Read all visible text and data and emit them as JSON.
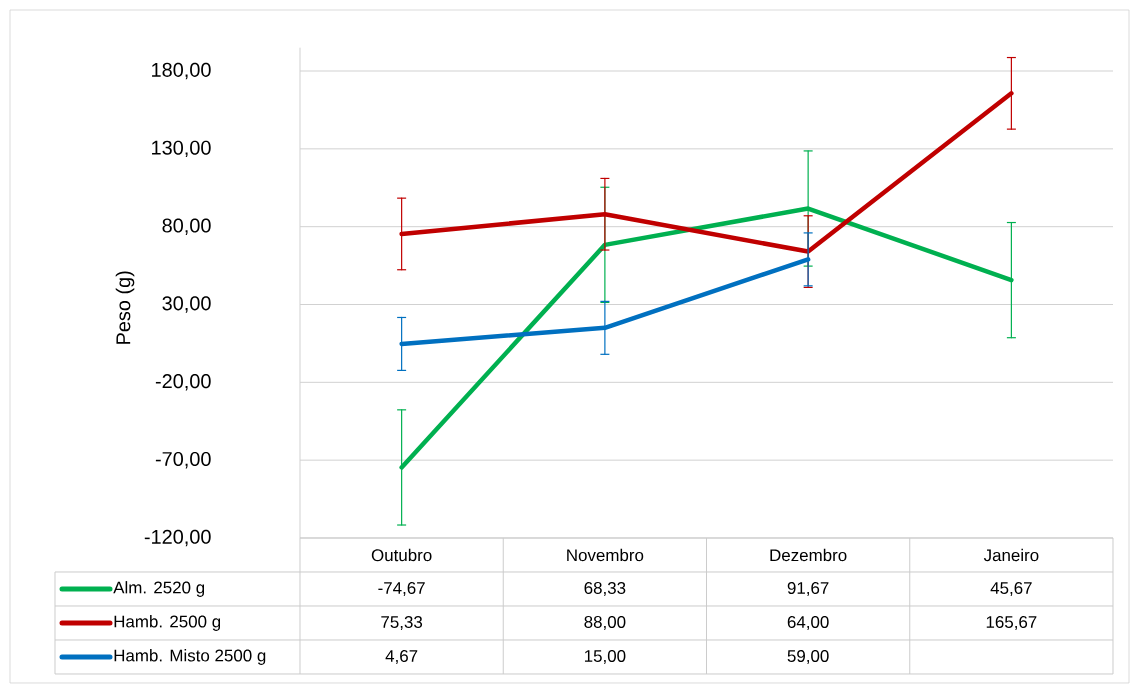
{
  "chart_data": {
    "type": "line",
    "ylabel": "Peso (g)",
    "categories": [
      "Outubro",
      "Novembro",
      "Dezembro",
      "Janeiro"
    ],
    "ylim": [
      -120,
      195
    ],
    "yticks": [
      {
        "value": -120,
        "label": "-120,00"
      },
      {
        "value": -70,
        "label": "-70,00"
      },
      {
        "value": -20,
        "label": "-20,00"
      },
      {
        "value": 30,
        "label": "30,00"
      },
      {
        "value": 80,
        "label": "80,00"
      },
      {
        "value": 130,
        "label": "130,00"
      },
      {
        "value": 180,
        "label": "180,00"
      }
    ],
    "grid": "y",
    "legend": "bottom",
    "series": [
      {
        "name": "Alm. 2520 g",
        "color": "#00b050",
        "values": [
          -74.67,
          68.33,
          91.67,
          45.67
        ],
        "errors": [
          37,
          37,
          37,
          37
        ],
        "value_labels": [
          "-74,67",
          "68,33",
          "91,67",
          "45,67"
        ]
      },
      {
        "name": "Hamb. 2500 g",
        "color": "#c00000",
        "values": [
          75.33,
          88.0,
          64.0,
          165.67
        ],
        "errors": [
          23,
          23,
          23,
          23
        ],
        "value_labels": [
          "75,33",
          "88,00",
          "64,00",
          "165,67"
        ]
      },
      {
        "name": "Hamb. Misto 2500 g",
        "color": "#0070c0",
        "values": [
          4.67,
          15.0,
          59.0,
          null
        ],
        "errors": [
          17,
          17,
          17,
          null
        ],
        "value_labels": [
          "4,67",
          "15,00",
          "59,00",
          null
        ]
      }
    ]
  }
}
